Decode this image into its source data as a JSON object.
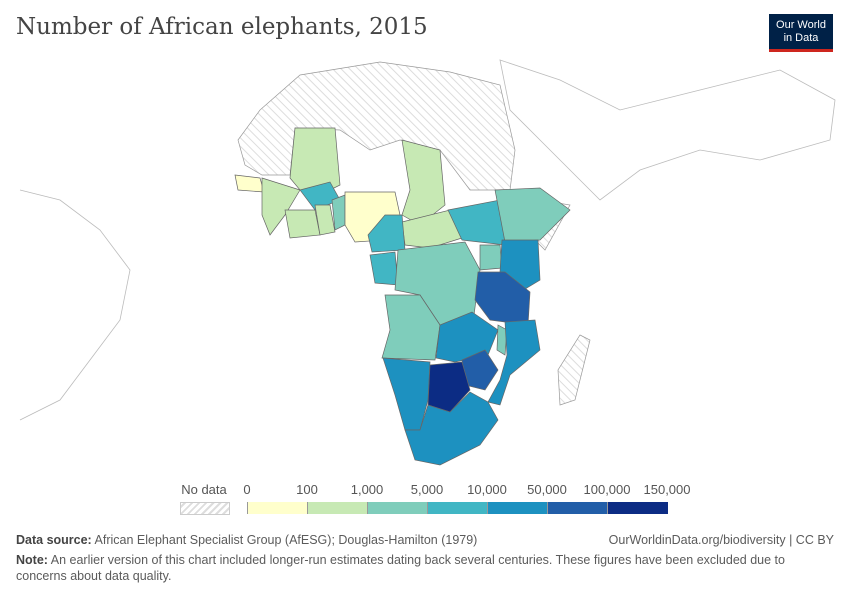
{
  "title": "Number of African elephants, 2015",
  "logo": {
    "line1": "Our World",
    "line2": "in Data"
  },
  "legend": {
    "no_data": "No data",
    "ticks": [
      "0",
      "100",
      "1,000",
      "5,000",
      "10,000",
      "50,000",
      "100,000",
      "150,000"
    ],
    "colors": [
      "#ffffcc",
      "#c7e9b4",
      "#7fcdbb",
      "#41b6c4",
      "#1d91c0",
      "#225ea8",
      "#0c2c84"
    ],
    "no_data_pattern": "hatched-grey"
  },
  "footer": {
    "source_label": "Data source:",
    "source": "African Elephant Specialist Group (AfESG); Douglas-Hamilton (1979)",
    "url": "OurWorldinData.org/biodiversity | CC BY",
    "note_label": "Note:",
    "note": "An earlier version of this chart included longer-run estimates dating back several centuries. These figures have been excluded due to concerns about data quality."
  }
}
